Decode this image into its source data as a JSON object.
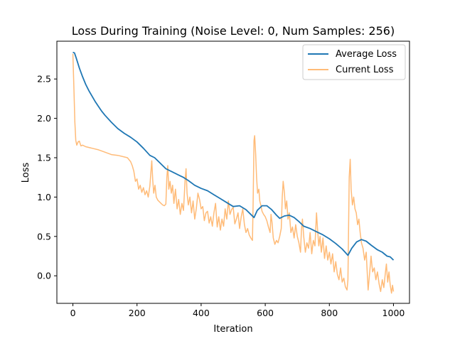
{
  "chart_data": {
    "type": "line",
    "title": "Loss During Training (Noise Level: 0, Num Samples: 256)",
    "xlabel": "Iteration",
    "ylabel": "Loss",
    "xlim": [
      -50,
      1050
    ],
    "ylim": [
      -0.35,
      2.98
    ],
    "x_ticks": [
      0,
      200,
      400,
      600,
      800,
      1000
    ],
    "y_ticks": [
      0.0,
      0.5,
      1.0,
      1.5,
      2.0,
      2.5
    ],
    "x_tick_labels": [
      "0",
      "200",
      "400",
      "600",
      "800",
      "1000"
    ],
    "y_tick_labels": [
      "0.0",
      "0.5",
      "1.0",
      "1.5",
      "2.0",
      "2.5"
    ],
    "grid": false,
    "legend_position": "upper right",
    "series": [
      {
        "name": "Average Loss",
        "color": "#1f77b4",
        "points": [
          [
            0,
            2.84
          ],
          [
            5,
            2.83
          ],
          [
            10,
            2.77
          ],
          [
            20,
            2.64
          ],
          [
            30,
            2.53
          ],
          [
            40,
            2.43
          ],
          [
            50,
            2.35
          ],
          [
            60,
            2.28
          ],
          [
            70,
            2.21
          ],
          [
            80,
            2.15
          ],
          [
            90,
            2.09
          ],
          [
            100,
            2.04
          ],
          [
            120,
            1.95
          ],
          [
            140,
            1.87
          ],
          [
            160,
            1.81
          ],
          [
            180,
            1.76
          ],
          [
            200,
            1.7
          ],
          [
            220,
            1.62
          ],
          [
            240,
            1.53
          ],
          [
            255,
            1.5
          ],
          [
            270,
            1.44
          ],
          [
            290,
            1.36
          ],
          [
            310,
            1.32
          ],
          [
            330,
            1.28
          ],
          [
            345,
            1.25
          ],
          [
            360,
            1.21
          ],
          [
            380,
            1.15
          ],
          [
            400,
            1.11
          ],
          [
            420,
            1.08
          ],
          [
            440,
            1.03
          ],
          [
            460,
            0.98
          ],
          [
            480,
            0.93
          ],
          [
            500,
            0.88
          ],
          [
            520,
            0.89
          ],
          [
            540,
            0.84
          ],
          [
            555,
            0.78
          ],
          [
            565,
            0.74
          ],
          [
            575,
            0.83
          ],
          [
            590,
            0.89
          ],
          [
            605,
            0.89
          ],
          [
            620,
            0.84
          ],
          [
            635,
            0.77
          ],
          [
            645,
            0.73
          ],
          [
            660,
            0.76
          ],
          [
            675,
            0.77
          ],
          [
            690,
            0.74
          ],
          [
            705,
            0.69
          ],
          [
            720,
            0.63
          ],
          [
            740,
            0.6
          ],
          [
            760,
            0.56
          ],
          [
            780,
            0.52
          ],
          [
            800,
            0.47
          ],
          [
            820,
            0.41
          ],
          [
            840,
            0.34
          ],
          [
            858,
            0.26
          ],
          [
            870,
            0.35
          ],
          [
            885,
            0.43
          ],
          [
            900,
            0.46
          ],
          [
            915,
            0.44
          ],
          [
            930,
            0.39
          ],
          [
            950,
            0.33
          ],
          [
            965,
            0.3
          ],
          [
            980,
            0.25
          ],
          [
            990,
            0.24
          ],
          [
            1000,
            0.2
          ]
        ]
      },
      {
        "name": "Current Loss",
        "color": "#ffbb78",
        "points": [
          [
            0,
            2.82
          ],
          [
            3,
            2.4
          ],
          [
            6,
            1.95
          ],
          [
            9,
            1.72
          ],
          [
            12,
            1.66
          ],
          [
            16,
            1.7
          ],
          [
            20,
            1.71
          ],
          [
            25,
            1.65
          ],
          [
            30,
            1.66
          ],
          [
            40,
            1.64
          ],
          [
            60,
            1.62
          ],
          [
            80,
            1.6
          ],
          [
            100,
            1.57
          ],
          [
            120,
            1.54
          ],
          [
            140,
            1.53
          ],
          [
            160,
            1.51
          ],
          [
            170,
            1.5
          ],
          [
            180,
            1.45
          ],
          [
            185,
            1.4
          ],
          [
            190,
            1.33
          ],
          [
            195,
            1.2
          ],
          [
            200,
            1.23
          ],
          [
            205,
            1.1
          ],
          [
            210,
            1.15
          ],
          [
            215,
            1.06
          ],
          [
            220,
            1.12
          ],
          [
            225,
            1.03
          ],
          [
            230,
            1.08
          ],
          [
            235,
            1.0
          ],
          [
            240,
            1.14
          ],
          [
            243,
            1.3
          ],
          [
            246,
            1.46
          ],
          [
            249,
            1.22
          ],
          [
            252,
            1.05
          ],
          [
            256,
            1.15
          ],
          [
            260,
            1.0
          ],
          [
            265,
            0.96
          ],
          [
            270,
            0.94
          ],
          [
            275,
            0.92
          ],
          [
            280,
            0.9
          ],
          [
            285,
            0.89
          ],
          [
            290,
            0.91
          ],
          [
            293,
            1.25
          ],
          [
            296,
            1.4
          ],
          [
            299,
            1.1
          ],
          [
            303,
            1.2
          ],
          [
            307,
            1.05
          ],
          [
            311,
            1.15
          ],
          [
            315,
            0.92
          ],
          [
            320,
            1.1
          ],
          [
            325,
            0.85
          ],
          [
            330,
            0.97
          ],
          [
            335,
            0.78
          ],
          [
            340,
            0.92
          ],
          [
            345,
            0.83
          ],
          [
            350,
            1.22
          ],
          [
            353,
            1.36
          ],
          [
            356,
            1.05
          ],
          [
            360,
            0.9
          ],
          [
            365,
            1.0
          ],
          [
            370,
            0.8
          ],
          [
            375,
            0.95
          ],
          [
            380,
            0.72
          ],
          [
            385,
            0.85
          ],
          [
            390,
            1.05
          ],
          [
            395,
            0.97
          ],
          [
            400,
            0.85
          ],
          [
            405,
            0.88
          ],
          [
            410,
            0.7
          ],
          [
            415,
            0.8
          ],
          [
            420,
            0.82
          ],
          [
            425,
            0.67
          ],
          [
            430,
            0.75
          ],
          [
            435,
            0.63
          ],
          [
            440,
            0.8
          ],
          [
            445,
            0.92
          ],
          [
            450,
            0.62
          ],
          [
            455,
            0.75
          ],
          [
            460,
            0.58
          ],
          [
            465,
            0.72
          ],
          [
            470,
            0.63
          ],
          [
            475,
            0.85
          ],
          [
            480,
            0.72
          ],
          [
            485,
            0.95
          ],
          [
            490,
            0.78
          ],
          [
            495,
            0.84
          ],
          [
            500,
            0.87
          ],
          [
            505,
            0.66
          ],
          [
            510,
            0.72
          ],
          [
            515,
            0.8
          ],
          [
            520,
            0.6
          ],
          [
            525,
            0.75
          ],
          [
            530,
            0.85
          ],
          [
            535,
            0.65
          ],
          [
            540,
            0.55
          ],
          [
            545,
            0.6
          ],
          [
            550,
            0.52
          ],
          [
            555,
            0.48
          ],
          [
            560,
            0.45
          ],
          [
            562,
            0.9
          ],
          [
            565,
            1.72
          ],
          [
            567,
            1.78
          ],
          [
            570,
            1.55
          ],
          [
            573,
            1.25
          ],
          [
            576,
            1.05
          ],
          [
            580,
            1.1
          ],
          [
            583,
            0.95
          ],
          [
            586,
            0.9
          ],
          [
            590,
            0.82
          ],
          [
            595,
            0.78
          ],
          [
            600,
            0.75
          ],
          [
            605,
            0.7
          ],
          [
            610,
            0.62
          ],
          [
            615,
            0.55
          ],
          [
            618,
            0.78
          ],
          [
            621,
            0.68
          ],
          [
            625,
            0.48
          ],
          [
            630,
            0.4
          ],
          [
            635,
            0.45
          ],
          [
            640,
            0.42
          ],
          [
            645,
            0.5
          ],
          [
            650,
            0.6
          ],
          [
            653,
            1.0
          ],
          [
            656,
            1.2
          ],
          [
            660,
            1.05
          ],
          [
            663,
            0.85
          ],
          [
            667,
            0.95
          ],
          [
            671,
            0.72
          ],
          [
            675,
            0.8
          ],
          [
            680,
            0.55
          ],
          [
            685,
            0.62
          ],
          [
            690,
            0.48
          ],
          [
            695,
            0.65
          ],
          [
            700,
            0.5
          ],
          [
            705,
            0.42
          ],
          [
            710,
            0.3
          ],
          [
            713,
            0.58
          ],
          [
            716,
            0.72
          ],
          [
            720,
            0.5
          ],
          [
            725,
            0.3
          ],
          [
            730,
            0.42
          ],
          [
            735,
            0.35
          ],
          [
            740,
            0.55
          ],
          [
            745,
            0.28
          ],
          [
            750,
            0.45
          ],
          [
            755,
            0.38
          ],
          [
            760,
            0.8
          ],
          [
            763,
            0.6
          ],
          [
            767,
            0.38
          ],
          [
            771,
            0.5
          ],
          [
            775,
            0.3
          ],
          [
            780,
            0.48
          ],
          [
            785,
            0.22
          ],
          [
            790,
            0.38
          ],
          [
            795,
            0.2
          ],
          [
            800,
            0.3
          ],
          [
            805,
            0.15
          ],
          [
            810,
            0.28
          ],
          [
            815,
            0.05
          ],
          [
            820,
            0.18
          ],
          [
            825,
            0.02
          ],
          [
            830,
            -0.05
          ],
          [
            835,
            0.1
          ],
          [
            840,
            -0.08
          ],
          [
            845,
            -0.03
          ],
          [
            850,
            -0.14
          ],
          [
            855,
            -0.18
          ],
          [
            858,
            -0.05
          ],
          [
            860,
            0.6
          ],
          [
            862,
            1.25
          ],
          [
            865,
            1.48
          ],
          [
            868,
            1.1
          ],
          [
            872,
            0.9
          ],
          [
            876,
            1.0
          ],
          [
            880,
            0.85
          ],
          [
            884,
            0.8
          ],
          [
            888,
            0.65
          ],
          [
            892,
            0.72
          ],
          [
            896,
            0.55
          ],
          [
            900,
            0.42
          ],
          [
            905,
            0.35
          ],
          [
            910,
            0.2
          ],
          [
            915,
            0.3
          ],
          [
            918,
            0.05
          ],
          [
            921,
            -0.18
          ],
          [
            925,
            0.0
          ],
          [
            930,
            0.25
          ],
          [
            935,
            0.05
          ],
          [
            940,
            0.1
          ],
          [
            945,
            -0.05
          ],
          [
            950,
            0.05
          ],
          [
            955,
            -0.1
          ],
          [
            960,
            -0.2
          ],
          [
            965,
            -0.05
          ],
          [
            970,
            -0.15
          ],
          [
            975,
            0.05
          ],
          [
            978,
            0.15
          ],
          [
            982,
            -0.08
          ],
          [
            986,
            0.05
          ],
          [
            990,
            -0.12
          ],
          [
            994,
            -0.22
          ],
          [
            997,
            -0.12
          ],
          [
            1000,
            -0.2
          ]
        ]
      }
    ]
  }
}
